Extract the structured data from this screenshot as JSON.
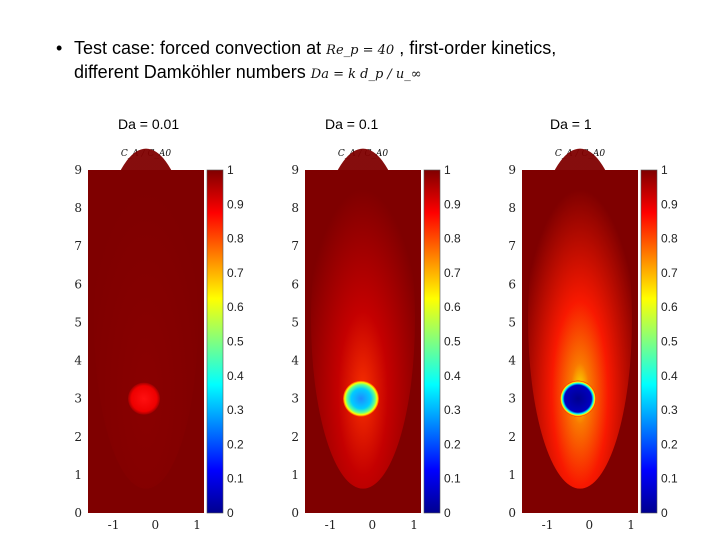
{
  "slide": {
    "bullet_symbol": "•",
    "line1_prefix": "Test case: forced convection at",
    "line1_math": "Re_p = 40",
    "line1_suffix": ", first-order kinetics,",
    "line2_prefix": "different Damköhler numbers",
    "line2_math": "Da = k d_p / u_∞"
  },
  "colormap_header": "C_A / C_A0",
  "colormap": [
    "#00008f",
    "#0000ff",
    "#0080ff",
    "#00ffff",
    "#80ff80",
    "#ffff00",
    "#ff8000",
    "#ff0000",
    "#800000"
  ],
  "panels": [
    {
      "label": "Da = 0.01",
      "da": 0.01,
      "y_ticks": [
        "0",
        "1",
        "2",
        "3",
        "4",
        "5",
        "6",
        "7",
        "8",
        "9"
      ],
      "x_ticks": [
        "-1",
        "0",
        "1"
      ],
      "cb_ticks": [
        "0",
        "0.1",
        "0.2",
        "0.3",
        "0.4",
        "0.5",
        "0.6",
        "0.7",
        "0.8",
        "0.9",
        "1"
      ]
    },
    {
      "label": "Da = 0.1",
      "da": 0.1,
      "y_ticks": [
        "0",
        "1",
        "2",
        "3",
        "4",
        "5",
        "6",
        "7",
        "8",
        "9"
      ],
      "x_ticks": [
        "-1",
        "0",
        "1"
      ],
      "cb_ticks": [
        "0",
        "0.1",
        "0.2",
        "0.3",
        "0.4",
        "0.5",
        "0.6",
        "0.7",
        "0.8",
        "0.9",
        "1"
      ]
    },
    {
      "label": "Da = 1",
      "da": 1,
      "y_ticks": [
        "0",
        "1",
        "2",
        "3",
        "4",
        "5",
        "6",
        "7",
        "8",
        "9"
      ],
      "x_ticks": [
        "-1",
        "0",
        "1"
      ],
      "cb_ticks": [
        "0",
        "0.1",
        "0.2",
        "0.3",
        "0.4",
        "0.5",
        "0.6",
        "0.7",
        "0.8",
        "0.9",
        "1"
      ]
    }
  ]
}
